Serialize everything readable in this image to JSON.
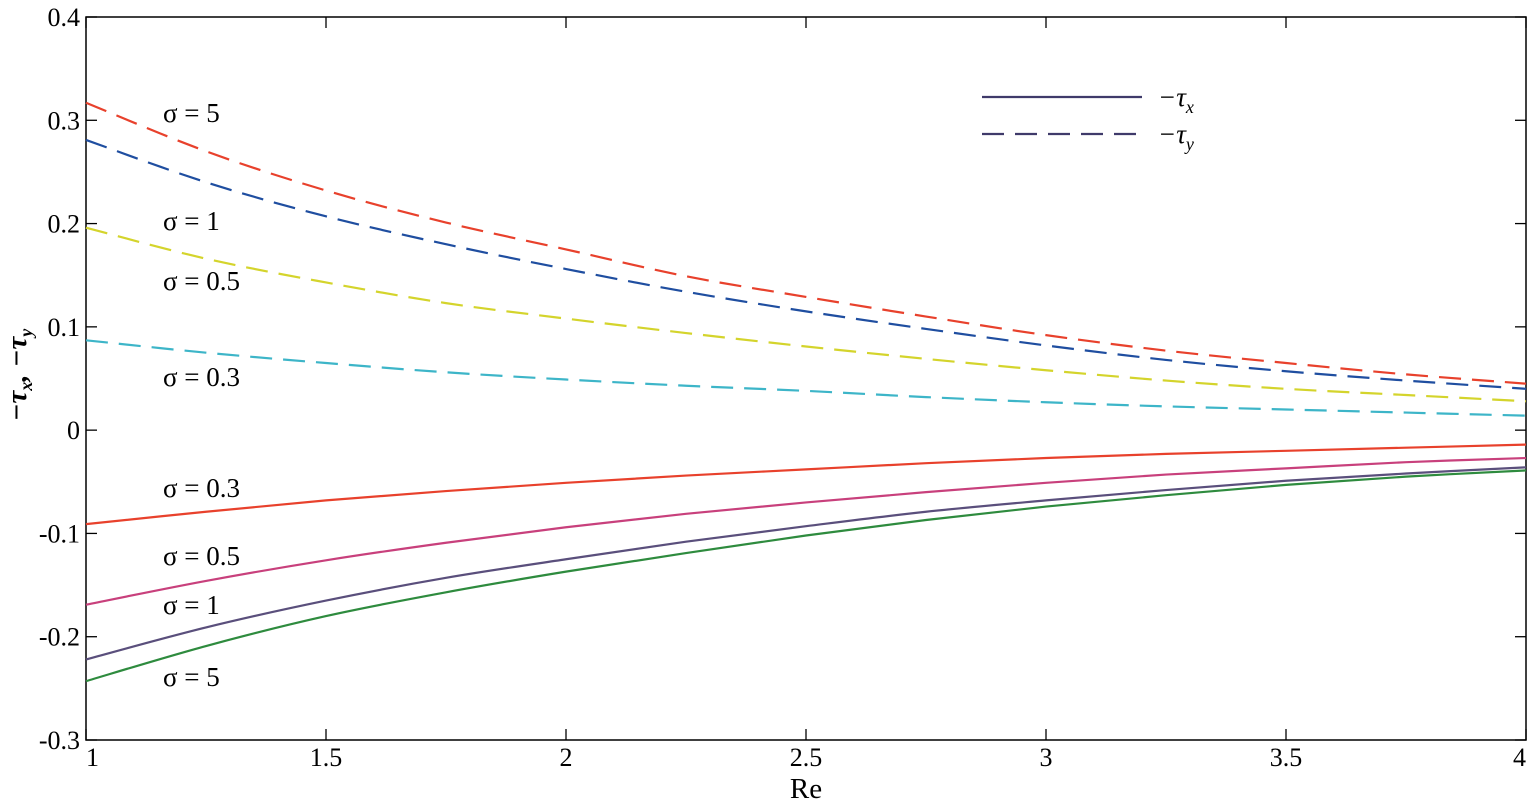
{
  "chart_data": {
    "type": "line",
    "title": "",
    "xlabel": "Re",
    "ylabel": "−τx, −τy",
    "xlim": [
      1,
      4
    ],
    "ylim": [
      -0.3,
      0.4
    ],
    "xticks": [
      "1",
      "1.5",
      "2",
      "2.5",
      "3",
      "3.5",
      "4"
    ],
    "yticks": [
      "-0.3",
      "-0.2",
      "-0.1",
      "0",
      "0.1",
      "0.2",
      "0.3",
      "0.4"
    ],
    "grid": false,
    "legend": {
      "position": "top-right",
      "entries": [
        {
          "text": "−τx",
          "base": "−τ",
          "sub": "x",
          "style": "solid"
        },
        {
          "text": "−τy",
          "base": "−τ",
          "sub": "y",
          "style": "dashed"
        }
      ]
    },
    "x": [
      1,
      1.25,
      1.5,
      1.75,
      2,
      2.25,
      2.5,
      2.75,
      3,
      3.25,
      3.5,
      3.75,
      4
    ],
    "series": [
      {
        "group": "tau_y",
        "style": "dashed",
        "color": "#e8412c",
        "label": "σ = 5",
        "values": [
          0.317,
          0.27,
          0.232,
          0.201,
          0.175,
          0.149,
          0.129,
          0.11,
          0.092,
          0.077,
          0.065,
          0.054,
          0.045
        ]
      },
      {
        "group": "tau_y",
        "style": "dashed",
        "color": "#1f4ea0",
        "label": "σ = 1",
        "values": [
          0.281,
          0.24,
          0.207,
          0.18,
          0.156,
          0.134,
          0.115,
          0.098,
          0.082,
          0.068,
          0.057,
          0.048,
          0.04
        ]
      },
      {
        "group": "tau_y",
        "style": "dashed",
        "color": "#d4d42c",
        "label": "σ = 0.5",
        "values": [
          0.196,
          0.166,
          0.143,
          0.123,
          0.108,
          0.094,
          0.081,
          0.069,
          0.058,
          0.048,
          0.04,
          0.034,
          0.028
        ]
      },
      {
        "group": "tau_y",
        "style": "dashed",
        "color": "#3db5c8",
        "label": "σ = 0.3",
        "values": [
          0.087,
          0.075,
          0.065,
          0.056,
          0.049,
          0.043,
          0.038,
          0.032,
          0.027,
          0.023,
          0.02,
          0.017,
          0.014
        ]
      },
      {
        "group": "tau_x",
        "style": "solid",
        "color": "#e8412c",
        "label": "σ = 0.3",
        "values": [
          -0.091,
          -0.079,
          -0.068,
          -0.059,
          -0.051,
          -0.044,
          -0.038,
          -0.032,
          -0.027,
          -0.023,
          -0.02,
          -0.017,
          -0.014
        ]
      },
      {
        "group": "tau_x",
        "style": "solid",
        "color": "#c8407c",
        "label": "σ = 0.5",
        "values": [
          -0.169,
          -0.146,
          -0.126,
          -0.109,
          -0.094,
          -0.081,
          -0.07,
          -0.06,
          -0.051,
          -0.043,
          -0.037,
          -0.031,
          -0.027
        ]
      },
      {
        "group": "tau_x",
        "style": "solid",
        "color": "#5a4f7c",
        "label": "σ = 1",
        "values": [
          -0.222,
          -0.191,
          -0.165,
          -0.143,
          -0.125,
          -0.108,
          -0.093,
          -0.079,
          -0.068,
          -0.058,
          -0.049,
          -0.042,
          -0.036
        ]
      },
      {
        "group": "tau_x",
        "style": "solid",
        "color": "#2e8b3e",
        "label": "σ = 5",
        "values": [
          -0.243,
          -0.209,
          -0.18,
          -0.157,
          -0.137,
          -0.119,
          -0.102,
          -0.087,
          -0.074,
          -0.063,
          -0.053,
          -0.045,
          -0.039
        ]
      }
    ]
  }
}
